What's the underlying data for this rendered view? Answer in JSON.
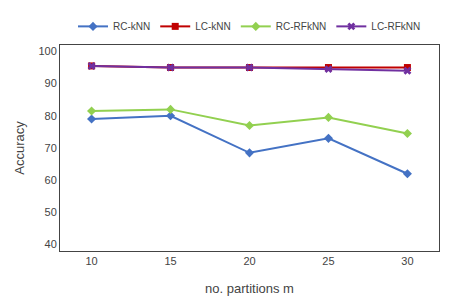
{
  "chart_data": {
    "type": "line",
    "x": [
      10,
      15,
      20,
      25,
      30
    ],
    "series": [
      {
        "name": "RC-kNN",
        "color": "#4472C4",
        "marker": "diamond",
        "values": [
          79,
          80,
          68.5,
          73,
          62
        ]
      },
      {
        "name": "LC-kNN",
        "color": "#C00000",
        "marker": "square",
        "values": [
          95.5,
          95,
          95,
          95,
          95
        ]
      },
      {
        "name": "RC-RFkNN",
        "color": "#92D050",
        "marker": "diamond",
        "values": [
          81.5,
          82,
          77,
          79.5,
          74.5
        ]
      },
      {
        "name": "LC-RFkNN",
        "color": "#7030A0",
        "marker": "x",
        "values": [
          95.5,
          95,
          95,
          94.5,
          94
        ]
      }
    ],
    "xlabel": "no. partitions m",
    "ylabel": "Accuracy",
    "xlim": [
      8,
      32
    ],
    "xticks": [
      10,
      15,
      20,
      25,
      30
    ],
    "ylim": [
      38,
      102
    ],
    "yticks": [
      40,
      50,
      60,
      70,
      80,
      90,
      100
    ],
    "grid": false,
    "legend": "top"
  }
}
